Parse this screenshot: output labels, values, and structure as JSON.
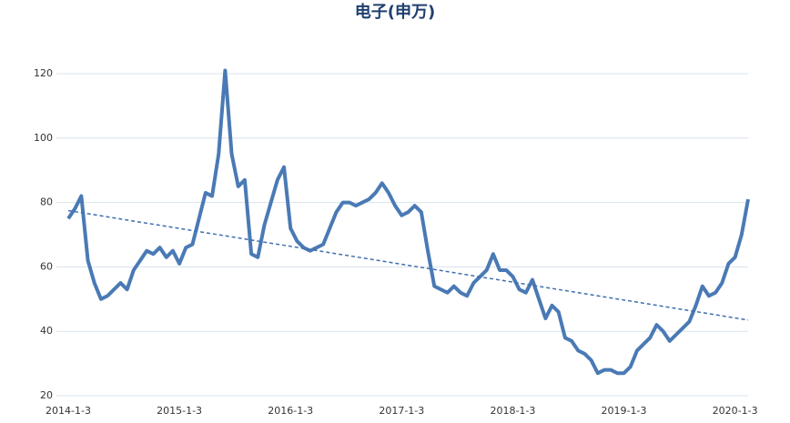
{
  "chart_data": {
    "type": "line",
    "title": "电子(申万)",
    "categories": [
      "2014-1-3",
      null,
      null,
      null,
      null,
      null,
      null,
      null,
      null,
      null,
      null,
      null,
      null,
      null,
      null,
      null,
      null,
      "2015-1-3",
      null,
      null,
      null,
      null,
      null,
      null,
      null,
      null,
      null,
      null,
      null,
      null,
      null,
      null,
      null,
      null,
      "2016-1-3",
      null,
      null,
      null,
      null,
      null,
      null,
      null,
      null,
      null,
      null,
      null,
      null,
      null,
      null,
      null,
      null,
      "2017-1-3",
      null,
      null,
      null,
      null,
      null,
      null,
      null,
      null,
      null,
      null,
      null,
      null,
      null,
      null,
      null,
      null,
      "2018-1-3",
      null,
      null,
      null,
      null,
      null,
      null,
      null,
      null,
      null,
      null,
      null,
      null,
      null,
      null,
      null,
      null,
      "2019-1-3",
      null,
      null,
      null,
      null,
      null,
      null,
      null,
      null,
      null,
      null,
      null,
      null,
      null,
      null,
      null,
      null,
      "2020-1-3",
      null,
      null
    ],
    "values": [
      75,
      78,
      82,
      62,
      55,
      50,
      51,
      53,
      55,
      53,
      59,
      62,
      65,
      64,
      66,
      63,
      65,
      61,
      66,
      67,
      75,
      83,
      82,
      95,
      121,
      95,
      85,
      87,
      64,
      63,
      73,
      80,
      87,
      91,
      72,
      68,
      66,
      65,
      66,
      67,
      72,
      77,
      80,
      80,
      79,
      80,
      81,
      83,
      86,
      83,
      79,
      76,
      77,
      79,
      77,
      65,
      54,
      53,
      52,
      54,
      52,
      51,
      55,
      57,
      59,
      64,
      59,
      59,
      57,
      53,
      52,
      56,
      50,
      44,
      48,
      46,
      38,
      37,
      34,
      33,
      31,
      27,
      28,
      28,
      27,
      27,
      29,
      34,
      36,
      38,
      42,
      40,
      37,
      39,
      41,
      43,
      48,
      54,
      51,
      52,
      55,
      61,
      63,
      70,
      81
    ],
    "color": "#4a7ab5",
    "trend": [
      77.5,
      43.5
    ],
    "trend_color": "#3f6fae",
    "ylim": [
      20,
      120
    ],
    "yticks": [
      20,
      40,
      60,
      80,
      100,
      120
    ],
    "grid": true
  }
}
